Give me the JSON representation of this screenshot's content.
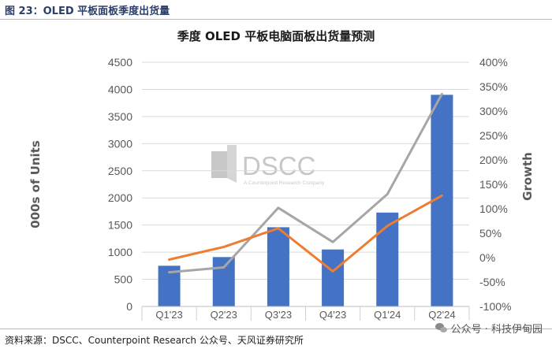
{
  "figure": {
    "label": "图 23：OLED 平板面板季度出货量",
    "source": "资料来源：DSCC、Counterpoint Research 公众号、天风证券研究所",
    "watermark_brand": "DSCC",
    "watermark_sub": "A Counterpoint Research Company",
    "wechat_text": "公众号 · 科技伊甸园"
  },
  "colors": {
    "bar": "#4472c4",
    "growth_gray": "#a6a6a6",
    "growth_orange": "#ed7d31",
    "grid": "#d9d9d9",
    "axis_text": "#595959"
  },
  "chart_data": {
    "type": "bar",
    "title": "季度 OLED 平板电脑面板出货量预测",
    "xlabel": "",
    "ylabel": "000s of Units",
    "y2label": "Growth",
    "categories": [
      "Q1'23",
      "Q2'23",
      "Q3'23",
      "Q4'23",
      "Q1'24",
      "Q2'24"
    ],
    "ylim": [
      0,
      4500
    ],
    "yticks": [
      0,
      500,
      1000,
      1500,
      2000,
      2500,
      3000,
      3500,
      4000,
      4500
    ],
    "y2lim": [
      -100,
      400
    ],
    "y2ticks": [
      "-100%",
      "-50%",
      "0%",
      "50%",
      "100%",
      "150%",
      "200%",
      "250%",
      "300%",
      "350%",
      "400%"
    ],
    "grid": true,
    "series": [
      {
        "type": "bar",
        "axis": "left",
        "values": [
          750,
          910,
          1460,
          1050,
          1730,
          3900
        ]
      },
      {
        "type": "line",
        "axis": "right",
        "color": "#a6a6a6",
        "values": [
          -30,
          -20,
          102,
          32,
          130,
          335
        ]
      },
      {
        "type": "line",
        "axis": "right",
        "color": "#ed7d31",
        "values": [
          -4,
          22,
          60,
          -28,
          65,
          127
        ]
      }
    ]
  }
}
